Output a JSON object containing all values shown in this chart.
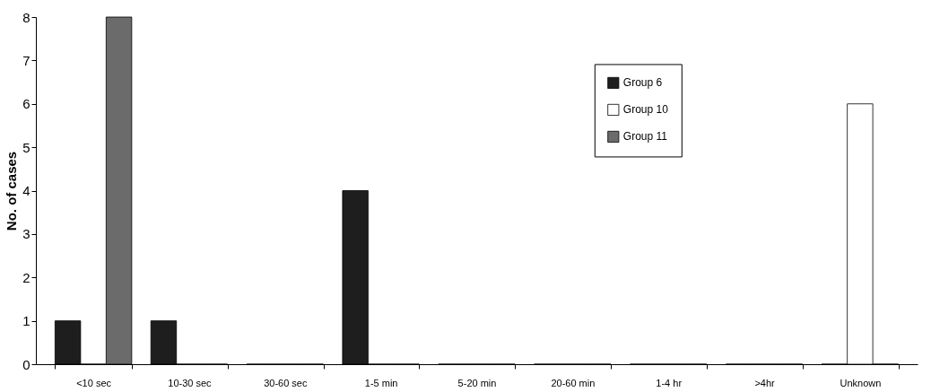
{
  "chart_data": {
    "type": "bar",
    "ylabel": "No. of cases",
    "categories": [
      "<10 sec",
      "10-30 sec",
      "30-60 sec",
      "1-5 min",
      "5-20 min",
      "20-60 min",
      "1-4 hr",
      ">4hr",
      "Unknown"
    ],
    "series": [
      {
        "name": "Group 6",
        "color": "#1e1e1e",
        "values": [
          1,
          1,
          0,
          4,
          0,
          0,
          0,
          0,
          0
        ]
      },
      {
        "name": "Group 10",
        "color": "#ffffff",
        "values": [
          0,
          0,
          0,
          0,
          0,
          0,
          0,
          0,
          6
        ]
      },
      {
        "name": "Group 11",
        "color": "#6b6b6b",
        "values": [
          8,
          0,
          0,
          0,
          0,
          0,
          0,
          0,
          0
        ]
      }
    ],
    "ylim": [
      0,
      8
    ],
    "yticks": [
      0,
      1,
      2,
      3,
      4,
      5,
      6,
      7,
      8
    ],
    "grid": false,
    "legend": "top right"
  }
}
